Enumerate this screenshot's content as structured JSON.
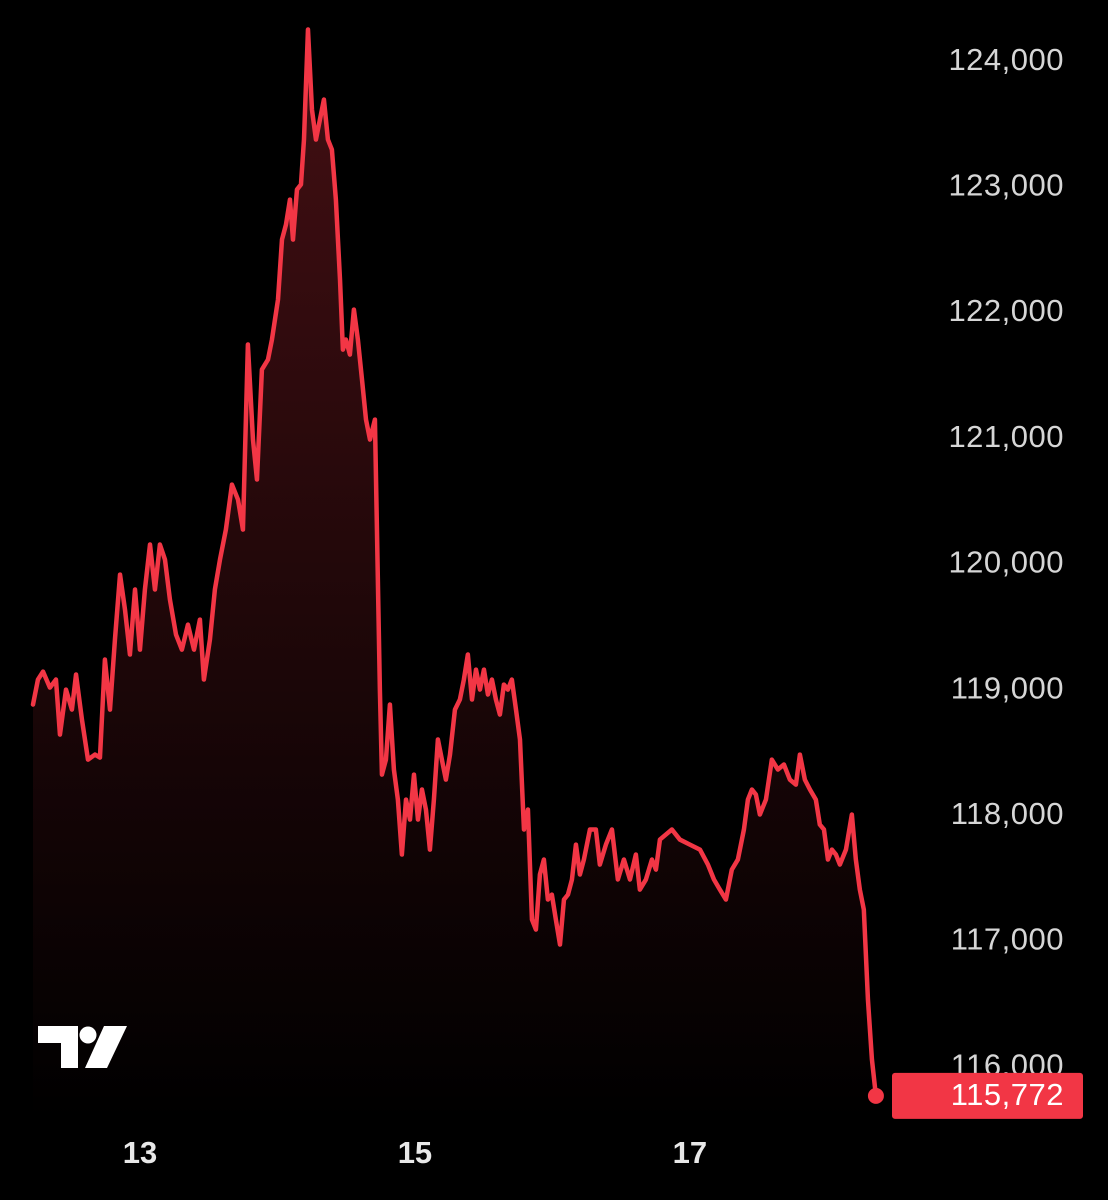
{
  "chart_data": {
    "type": "area",
    "color": "#f23645",
    "x": [
      12.222,
      12.258,
      12.295,
      12.345,
      12.389,
      12.418,
      12.462,
      12.505,
      12.535,
      12.578,
      12.622,
      12.673,
      12.709,
      12.745,
      12.782,
      12.818,
      12.855,
      12.891,
      12.927,
      12.964,
      13.0,
      13.036,
      13.073,
      13.109,
      13.145,
      13.182,
      13.218,
      13.262,
      13.305,
      13.349,
      13.393,
      13.436,
      13.465,
      13.509,
      13.545,
      13.582,
      13.625,
      13.669,
      13.713,
      13.749,
      13.785,
      13.822,
      13.851,
      13.887,
      13.931,
      13.96,
      14.004,
      14.033,
      14.062,
      14.091,
      14.113,
      14.142,
      14.171,
      14.193,
      14.222,
      14.251,
      14.28,
      14.309,
      14.338,
      14.367,
      14.396,
      14.425,
      14.455,
      14.476,
      14.498,
      14.527,
      14.556,
      14.585,
      14.615,
      14.644,
      14.673,
      14.709,
      14.745,
      14.76,
      14.789,
      14.818,
      14.847,
      14.876,
      14.905,
      14.935,
      14.964,
      14.993,
      15.022,
      15.051,
      15.08,
      15.109,
      15.138,
      15.167,
      15.196,
      15.225,
      15.255,
      15.291,
      15.327,
      15.356,
      15.385,
      15.415,
      15.444,
      15.473,
      15.502,
      15.531,
      15.56,
      15.589,
      15.618,
      15.647,
      15.676,
      15.705,
      15.735,
      15.764,
      15.793,
      15.822,
      15.851,
      15.88,
      15.909,
      15.938,
      15.967,
      15.996,
      16.025,
      16.055,
      16.084,
      16.113,
      16.142,
      16.171,
      16.2,
      16.229,
      16.273,
      16.316,
      16.345,
      16.389,
      16.433,
      16.476,
      16.52,
      16.564,
      16.607,
      16.636,
      16.68,
      16.724,
      16.753,
      16.782,
      16.825,
      16.869,
      16.927,
      17.0,
      17.073,
      17.131,
      17.175,
      17.218,
      17.262,
      17.305,
      17.349,
      17.393,
      17.422,
      17.451,
      17.48,
      17.509,
      17.553,
      17.596,
      17.64,
      17.684,
      17.727,
      17.771,
      17.8,
      17.836,
      17.873,
      17.916,
      17.945,
      17.975,
      18.004,
      18.033,
      18.062,
      18.091,
      18.135,
      18.178,
      18.207,
      18.236,
      18.265,
      18.295,
      18.324,
      18.353
    ],
    "values": [
      118885,
      119084,
      119147,
      119020,
      119084,
      118646,
      119004,
      118845,
      119124,
      118766,
      118447,
      118487,
      118463,
      119243,
      118845,
      119402,
      119919,
      119641,
      119283,
      119800,
      119322,
      119800,
      120158,
      119800,
      120158,
      120038,
      119720,
      119442,
      119322,
      119521,
      119322,
      119561,
      119084,
      119402,
      119800,
      120038,
      120277,
      120635,
      120516,
      120277,
      121749,
      120993,
      120675,
      121550,
      121629,
      121789,
      122107,
      122584,
      122703,
      122902,
      122584,
      122982,
      123022,
      123380,
      124255,
      123618,
      123380,
      123539,
      123698,
      123380,
      123300,
      122902,
      122266,
      121709,
      121789,
      121669,
      122027,
      121789,
      121470,
      121152,
      120993,
      121152,
      119004,
      118328,
      118447,
      118885,
      118368,
      118129,
      117692,
      118129,
      117970,
      118328,
      117970,
      118209,
      118050,
      117731,
      118129,
      118607,
      118447,
      118288,
      118487,
      118845,
      118925,
      119084,
      119283,
      118925,
      119163,
      119004,
      119163,
      118965,
      119084,
      118925,
      118805,
      119044,
      119004,
      119084,
      118845,
      118607,
      117891,
      118050,
      117175,
      117095,
      117533,
      117652,
      117334,
      117373,
      117175,
      116976,
      117334,
      117373,
      117493,
      117771,
      117533,
      117652,
      117891,
      117891,
      117612,
      117771,
      117891,
      117493,
      117652,
      117493,
      117692,
      117413,
      117493,
      117652,
      117572,
      117811,
      117851,
      117891,
      117811,
      117771,
      117731,
      117612,
      117493,
      117413,
      117334,
      117572,
      117652,
      117891,
      118129,
      118209,
      118169,
      118010,
      118129,
      118447,
      118368,
      118408,
      118288,
      118248,
      118487,
      118288,
      118209,
      118129,
      117930,
      117891,
      117652,
      117731,
      117692,
      117612,
      117731,
      118010,
      117652,
      117413,
      117254,
      116538,
      116061,
      115772
    ],
    "xlim": [
      12.222,
      18.55
    ],
    "ylim": [
      115580,
      124490
    ],
    "xticks": [
      13,
      15,
      17
    ],
    "yticks": [
      {
        "value": 116000,
        "label": "116,000"
      },
      {
        "value": 117000,
        "label": "117,000"
      },
      {
        "value": 118000,
        "label": "118,000"
      },
      {
        "value": 119000,
        "label": "119,000"
      },
      {
        "value": 120000,
        "label": "120,000"
      },
      {
        "value": 121000,
        "label": "121,000"
      },
      {
        "value": 122000,
        "label": "122,000"
      },
      {
        "value": 123000,
        "label": "123,000"
      },
      {
        "value": 124000,
        "label": "124,000"
      }
    ],
    "current_price": {
      "value": 115772,
      "label": "115,772"
    }
  }
}
